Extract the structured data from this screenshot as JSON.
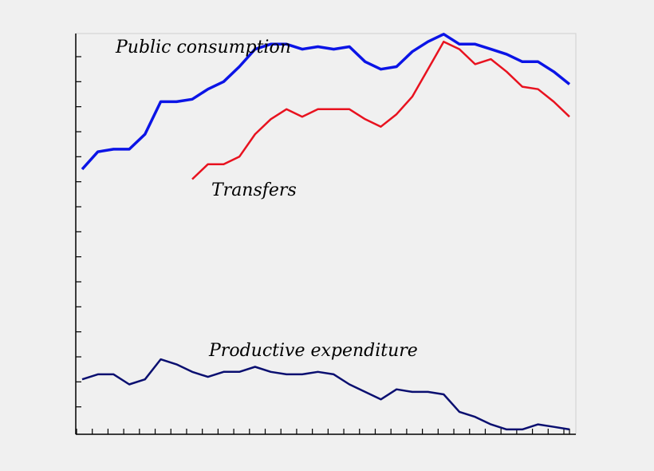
{
  "chart_data": {
    "type": "line",
    "title": "",
    "xlabel": "",
    "ylabel": "",
    "x": [
      1,
      2,
      3,
      4,
      5,
      6,
      7,
      8,
      9,
      10,
      11,
      12,
      13,
      14,
      15,
      16,
      17,
      18,
      19,
      20,
      21,
      22,
      23,
      24,
      25,
      26,
      27,
      28,
      29,
      30,
      31,
      32
    ],
    "xlim": [
      0,
      32
    ],
    "ylim": [
      0,
      16
    ],
    "y_tick_count": 16,
    "grid": false,
    "series": [
      {
        "name": "Public consumption",
        "color": "#0b14e6",
        "width": 3.5,
        "values": [
          10.5,
          11.2,
          11.3,
          11.3,
          11.9,
          13.2,
          13.2,
          13.3,
          13.7,
          14.0,
          14.6,
          15.3,
          15.5,
          15.5,
          15.3,
          15.4,
          15.3,
          15.4,
          14.8,
          14.5,
          14.6,
          15.2,
          15.6,
          15.9,
          15.5,
          15.5,
          15.3,
          15.1,
          14.8,
          14.8,
          14.4,
          13.9
        ],
        "label_pos": "top-left"
      },
      {
        "name": "Transfers",
        "color": "#e8121f",
        "width": 2.5,
        "values": [
          null,
          null,
          null,
          null,
          null,
          null,
          null,
          10.1,
          10.7,
          10.7,
          11.0,
          11.9,
          12.5,
          12.9,
          12.6,
          12.9,
          12.9,
          12.9,
          12.5,
          12.2,
          12.7,
          13.4,
          14.5,
          15.6,
          15.3,
          14.7,
          14.9,
          14.4,
          13.8,
          13.7,
          13.2,
          12.6
        ],
        "label_pos": "middle"
      },
      {
        "name": "Productive expenditure",
        "color": "#0a0f70",
        "width": 2.5,
        "values": [
          2.1,
          2.3,
          2.3,
          1.9,
          2.1,
          2.9,
          2.7,
          2.4,
          2.2,
          2.4,
          2.4,
          2.6,
          2.4,
          2.3,
          2.3,
          2.4,
          2.3,
          1.9,
          1.6,
          1.3,
          1.7,
          1.6,
          1.6,
          1.5,
          0.8,
          0.6,
          0.3,
          0.1,
          0.1,
          0.3,
          0.2,
          0.1
        ],
        "label_pos": "bottom"
      }
    ]
  }
}
